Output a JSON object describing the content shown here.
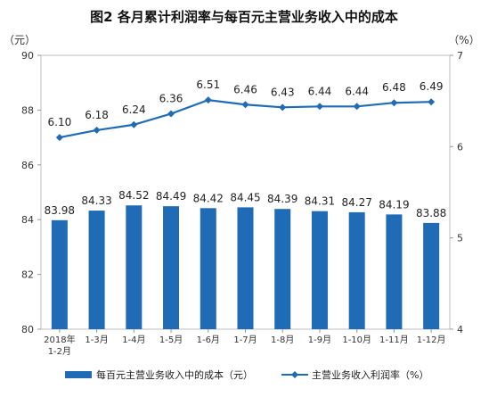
{
  "chart_data": {
    "type": "bar+line",
    "title": "图2  各月累计利润率与每百元主营业务收入中的成本",
    "left_unit": "（元）",
    "right_unit": "（%）",
    "categories": [
      "2018年\n1-2月",
      "1-3月",
      "1-4月",
      "1-5月",
      "1-6月",
      "1-7月",
      "1-8月",
      "1-9月",
      "1-10月",
      "1-11月",
      "1-12月"
    ],
    "bar_series": {
      "name": "每百元主营业务收入中的成本（元）",
      "values": [
        83.98,
        84.33,
        84.52,
        84.49,
        84.42,
        84.45,
        84.39,
        84.31,
        84.27,
        84.19,
        83.88
      ],
      "labels": [
        "83.98",
        "84.33",
        "84.52",
        "84.49",
        "84.42",
        "84.45",
        "84.39",
        "84.31",
        "84.27",
        "84.19",
        "83.88"
      ],
      "color": "#1f6bb5"
    },
    "line_series": {
      "name": "主营业务收入利润率（%）",
      "values": [
        6.1,
        6.18,
        6.24,
        6.36,
        6.51,
        6.46,
        6.43,
        6.44,
        6.44,
        6.48,
        6.49
      ],
      "labels": [
        "6.10",
        "6.18",
        "6.24",
        "6.36",
        "6.51",
        "6.46",
        "6.43",
        "6.44",
        "6.44",
        "6.48",
        "6.49"
      ],
      "color": "#1f6bb5"
    },
    "left_axis": {
      "min": 80,
      "max": 90,
      "ticks": [
        "80",
        "82",
        "84",
        "86",
        "88",
        "90"
      ]
    },
    "right_axis": {
      "min": 4,
      "max": 7,
      "ticks": [
        "4",
        "5",
        "6",
        "7"
      ]
    },
    "grid": false,
    "legend_position": "bottom"
  }
}
